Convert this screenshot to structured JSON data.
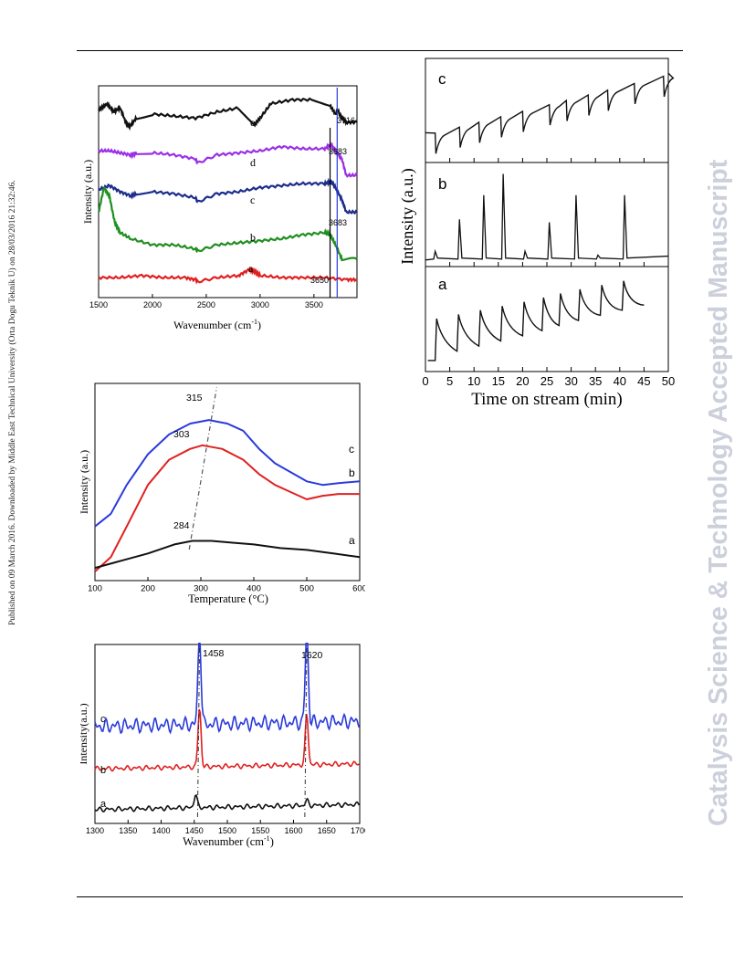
{
  "page": {
    "left_margin_text": "Published on 09 March 2016. Downloaded by Middle East Technical University (Orta Dogu Teknik U) on 28/03/2016 21:32:46.",
    "right_margin_text": "Catalysis Science & Technology Accepted Manuscript"
  },
  "colors": {
    "black": "#111111",
    "purple": "#9b30e6",
    "navy": "#1c2d8c",
    "green": "#1f8f1f",
    "red": "#e02020",
    "blue": "#2a3adb"
  },
  "chart_data": [
    {
      "type": "line",
      "xlabel": "Wavenumber (cm",
      "xlabel_sup": "-1",
      "xlabel_end": ")",
      "ylabel": "Intensity (a.u.)",
      "xlim": [
        1500,
        3900
      ],
      "xticks": [
        1500,
        2000,
        2500,
        3000,
        3500
      ],
      "series": [
        {
          "name": "e",
          "color": "#111111",
          "x": [
            1500,
            1580,
            1640,
            1700,
            1760,
            1790,
            1850,
            2000,
            2200,
            2400,
            2600,
            2800,
            2950,
            3000,
            3100,
            3300,
            3500,
            3650,
            3700,
            3720,
            3760,
            3800,
            3900
          ],
          "y": [
            0.9,
            0.93,
            0.89,
            0.91,
            0.83,
            0.82,
            0.86,
            0.88,
            0.87,
            0.86,
            0.89,
            0.91,
            0.83,
            0.86,
            0.93,
            0.95,
            0.95,
            0.92,
            0.88,
            0.9,
            0.86,
            0.84,
            0.84
          ]
        },
        {
          "name": "d",
          "color": "#9b30e6",
          "x": [
            1500,
            1600,
            1700,
            1800,
            1850,
            2000,
            2200,
            2400,
            2420,
            2600,
            2800,
            3000,
            3200,
            3400,
            3600,
            3660,
            3700,
            3760,
            3800,
            3900
          ],
          "y": [
            0.7,
            0.7,
            0.69,
            0.68,
            0.69,
            0.69,
            0.68,
            0.66,
            0.64,
            0.68,
            0.69,
            0.7,
            0.72,
            0.71,
            0.71,
            0.73,
            0.7,
            0.66,
            0.58,
            0.58
          ]
        },
        {
          "name": "c",
          "color": "#1c2d8c",
          "x": [
            1500,
            1600,
            1700,
            1800,
            1850,
            2000,
            2200,
            2400,
            2420,
            2600,
            2800,
            3000,
            3200,
            3400,
            3600,
            3660,
            3700,
            3760,
            3800,
            3900
          ],
          "y": [
            0.51,
            0.53,
            0.5,
            0.48,
            0.49,
            0.5,
            0.49,
            0.47,
            0.45,
            0.49,
            0.5,
            0.52,
            0.53,
            0.54,
            0.54,
            0.55,
            0.52,
            0.46,
            0.4,
            0.4
          ]
        },
        {
          "name": "b",
          "color": "#1f8f1f",
          "x": [
            1500,
            1550,
            1600,
            1650,
            1700,
            1800,
            2000,
            2200,
            2400,
            2420,
            2600,
            2800,
            3000,
            3200,
            3400,
            3600,
            3650,
            3700,
            3760,
            3900
          ],
          "y": [
            0.4,
            0.52,
            0.48,
            0.35,
            0.3,
            0.27,
            0.24,
            0.24,
            0.22,
            0.21,
            0.24,
            0.25,
            0.26,
            0.27,
            0.29,
            0.3,
            0.29,
            0.24,
            0.17,
            0.17
          ]
        },
        {
          "name": "a",
          "color": "#e02020",
          "x": [
            1500,
            1700,
            1900,
            2100,
            2300,
            2400,
            2420,
            2600,
            2800,
            2900,
            2950,
            3000,
            3200,
            3400,
            3600,
            3800,
            3900
          ],
          "y": [
            0.08,
            0.08,
            0.09,
            0.08,
            0.08,
            0.07,
            0.06,
            0.08,
            0.09,
            0.12,
            0.11,
            0.09,
            0.08,
            0.08,
            0.08,
            0.07,
            0.07
          ]
        }
      ],
      "vlines": [
        3650,
        3716
      ],
      "annotations": [
        "e",
        "d",
        "c",
        "b",
        "a",
        "3716",
        "3683",
        "3683",
        "3650"
      ]
    },
    {
      "type": "line",
      "xlabel": "Time on stream (min)",
      "ylabel": "Intensity (a.u.)",
      "xlim": [
        0,
        50
      ],
      "xticks": [
        0,
        5,
        10,
        15,
        20,
        25,
        30,
        35,
        40,
        45,
        50
      ],
      "panels": [
        {
          "name": "c",
          "pulses": [
            2,
            7,
            11,
            15.5,
            20,
            25.5,
            29,
            33.5,
            37.5,
            43,
            49
          ],
          "base_start": 0.25,
          "base_end": 0.9
        },
        {
          "name": "b",
          "peaks": [
            2,
            7,
            12,
            16,
            20.5,
            25.5,
            31,
            35.5,
            41
          ],
          "heights": [
            0.12,
            0.45,
            0.7,
            0.92,
            0.12,
            0.42,
            0.7,
            0.08,
            0.7
          ]
        },
        {
          "name": "a",
          "pulses": [
            2,
            6.5,
            11,
            15.5,
            20,
            24,
            27.5,
            31.5,
            36,
            40.5
          ],
          "end_x": 45
        }
      ]
    },
    {
      "type": "line",
      "xlabel": "Temperature (°C)",
      "ylabel": "Intensity (a.u.)",
      "xlim": [
        100,
        600
      ],
      "xticks": [
        100,
        200,
        300,
        400,
        500,
        600
      ],
      "series": [
        {
          "name": "c",
          "color": "#2a3adb",
          "x": [
            100,
            130,
            160,
            200,
            240,
            280,
            315,
            350,
            380,
            410,
            440,
            470,
            500,
            530,
            560,
            600
          ],
          "y": [
            0.45,
            0.52,
            0.68,
            0.85,
            0.96,
            1.02,
            1.04,
            1.02,
            0.98,
            0.88,
            0.8,
            0.75,
            0.7,
            0.68,
            0.69,
            0.7
          ]
        },
        {
          "name": "b",
          "color": "#e02020",
          "x": [
            100,
            130,
            160,
            200,
            240,
            280,
            303,
            340,
            380,
            410,
            440,
            470,
            500,
            530,
            560,
            600
          ],
          "y": [
            0.2,
            0.28,
            0.45,
            0.68,
            0.82,
            0.88,
            0.9,
            0.88,
            0.82,
            0.74,
            0.68,
            0.64,
            0.6,
            0.62,
            0.63,
            0.63
          ]
        },
        {
          "name": "a",
          "color": "#111111",
          "x": [
            100,
            150,
            200,
            250,
            284,
            320,
            360,
            400,
            450,
            500,
            550,
            600
          ],
          "y": [
            0.22,
            0.26,
            0.3,
            0.35,
            0.37,
            0.37,
            0.36,
            0.35,
            0.33,
            0.32,
            0.3,
            0.28
          ]
        }
      ],
      "peak_labels": [
        {
          "x": 315,
          "label": "315"
        },
        {
          "x": 303,
          "label": "303"
        },
        {
          "x": 284,
          "label": "284"
        }
      ]
    },
    {
      "type": "line",
      "xlabel": "Wavenumber (cm",
      "xlabel_sup": "-1",
      "xlabel_end": ")",
      "ylabel": "Intensity(a.u.)",
      "xlim": [
        1300,
        1700
      ],
      "xticks": [
        1300,
        1350,
        1400,
        1450,
        1500,
        1550,
        1600,
        1650,
        1700
      ],
      "series": [
        {
          "name": "c",
          "color": "#2a3adb",
          "peaks": [
            {
              "x": 1458,
              "h": 0.55
            },
            {
              "x": 1620,
              "h": 0.55
            }
          ],
          "base": 0.55
        },
        {
          "name": "b",
          "color": "#e02020",
          "peaks": [
            {
              "x": 1458,
              "h": 0.35
            },
            {
              "x": 1620,
              "h": 0.3
            }
          ],
          "base": 0.3
        },
        {
          "name": "a",
          "color": "#111111",
          "peaks": [
            {
              "x": 1452,
              "h": 0.08
            },
            {
              "x": 1620,
              "h": 0.03
            }
          ],
          "base": 0.06
        }
      ],
      "peak_labels": [
        {
          "x": 1458,
          "label": "1458"
        },
        {
          "x": 1620,
          "label": "1620"
        }
      ]
    }
  ]
}
